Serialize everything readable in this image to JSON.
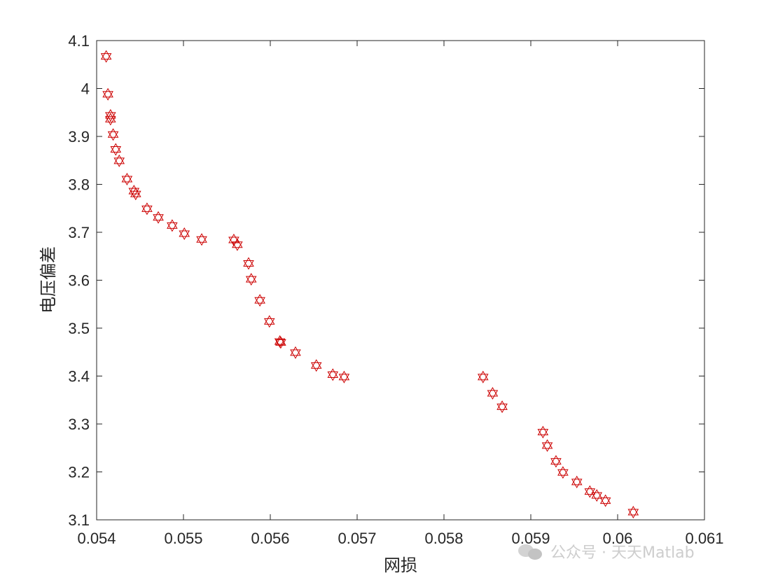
{
  "chart_data": {
    "type": "scatter",
    "xlabel": "网损",
    "ylabel": "电压偏差",
    "xlim": [
      0.054,
      0.061
    ],
    "ylim": [
      3.1,
      4.1
    ],
    "xticks": [
      "0.054",
      "0.055",
      "0.056",
      "0.057",
      "0.058",
      "0.059",
      "0.06",
      "0.061"
    ],
    "yticks": [
      "3.1",
      "3.2",
      "3.3",
      "3.4",
      "3.5",
      "3.6",
      "3.7",
      "3.8",
      "3.9",
      "4",
      "4.1"
    ],
    "marker": "hexagram",
    "marker_color": "#cc0000",
    "grid": false,
    "series": [
      {
        "x": [
          0.05411,
          0.05413,
          0.05416,
          0.05416,
          0.05419,
          0.05422,
          0.05426,
          0.05435,
          0.05443,
          0.05445,
          0.05458,
          0.05471,
          0.05487,
          0.05501,
          0.05521,
          0.05558,
          0.05562,
          0.05575,
          0.05578,
          0.05588,
          0.05599,
          0.05611,
          0.05612,
          0.05629,
          0.05653,
          0.05672,
          0.05685,
          0.05845,
          0.05856,
          0.05867,
          0.05914,
          0.05919,
          0.05929,
          0.05937,
          0.05953,
          0.05968,
          0.05976,
          0.05986,
          0.06018
        ],
        "y": [
          4.067,
          3.988,
          3.944,
          3.936,
          3.904,
          3.873,
          3.849,
          3.811,
          3.786,
          3.78,
          3.749,
          3.731,
          3.714,
          3.697,
          3.685,
          3.684,
          3.674,
          3.635,
          3.602,
          3.558,
          3.514,
          3.472,
          3.47,
          3.449,
          3.422,
          3.403,
          3.398,
          3.398,
          3.364,
          3.336,
          3.283,
          3.255,
          3.222,
          3.199,
          3.179,
          3.159,
          3.151,
          3.14,
          3.116
        ]
      }
    ]
  },
  "watermark": {
    "text": "公众号 · 天天Matlab"
  }
}
